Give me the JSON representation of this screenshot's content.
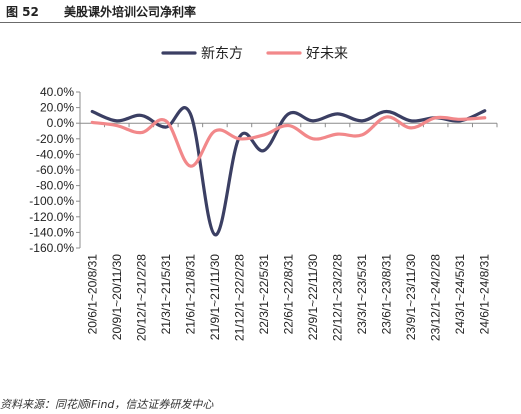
{
  "figure": {
    "number": "图 52",
    "title": "美股课外培训公司净利率",
    "source": "资料来源：同花顺iFind，信达证券研发中心"
  },
  "chart_data": {
    "type": "line",
    "title": "",
    "xlabel": "",
    "ylabel": "",
    "ylim": [
      -160,
      40
    ],
    "y_ticks": [
      "40.0%",
      "20.0%",
      "0.0%",
      "-20.0%",
      "-40.0%",
      "-60.0%",
      "-80.0%",
      "-100.0%",
      "-120.0%",
      "-140.0%",
      "-160.0%"
    ],
    "y_tick_values": [
      40,
      20,
      0,
      -20,
      -40,
      -60,
      -80,
      -100,
      -120,
      -140,
      -160
    ],
    "legend_position": "top-center",
    "grid": false,
    "categories": [
      "20/6/1~20/8/31",
      "20/9/1~20/11/30",
      "20/12/1~21/2/28",
      "21/3/1~21/5/31",
      "21/6/1~21/8/31",
      "21/9/1~21/11/30",
      "21/12/1~22/2/28",
      "22/3/1~22/5/31",
      "22/6/1~22/8/31",
      "22/9/1~22/11/30",
      "22/12/1~23/2/28",
      "23/3/1~23/5/31",
      "23/6/1~23/8/31",
      "23/9/1~23/11/30",
      "23/12/1~24/2/28",
      "24/3/1~24/5/31",
      "24/6/1~24/8/31"
    ],
    "series": [
      {
        "name": "新东方",
        "color": "#3b3f63",
        "values": [
          15,
          3,
          10,
          -5,
          12,
          -143,
          -18,
          -35,
          12,
          3,
          12,
          3,
          15,
          3,
          7,
          3,
          16
        ]
      },
      {
        "name": "好未来",
        "color": "#f2888a",
        "values": [
          1,
          -3,
          -12,
          3,
          -55,
          -10,
          -20,
          -15,
          -3,
          -20,
          -14,
          -15,
          8,
          -6,
          7,
          5,
          7
        ]
      }
    ]
  }
}
